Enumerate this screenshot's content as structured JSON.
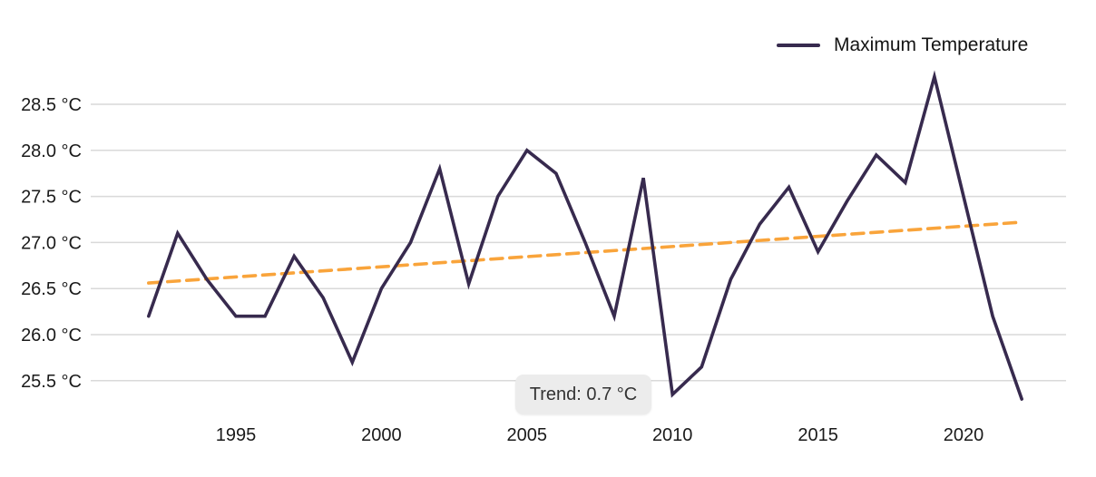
{
  "chart_data": {
    "type": "line",
    "title": "",
    "xlabel": "",
    "ylabel": "",
    "x": [
      1992,
      1993,
      1994,
      1995,
      1996,
      1997,
      1998,
      1999,
      2000,
      2001,
      2002,
      2003,
      2004,
      2005,
      2006,
      2007,
      2008,
      2009,
      2010,
      2011,
      2012,
      2013,
      2014,
      2015,
      2016,
      2017,
      2018,
      2019,
      2020,
      2021,
      2022
    ],
    "series": [
      {
        "name": "Maximum Temperature",
        "color": "#372a4e",
        "style": "solid",
        "values": [
          26.2,
          27.1,
          26.6,
          26.2,
          26.2,
          26.85,
          26.4,
          25.7,
          26.5,
          27.0,
          27.8,
          26.55,
          27.5,
          28.0,
          27.75,
          27.0,
          26.2,
          27.7,
          25.35,
          25.65,
          26.6,
          27.2,
          27.6,
          26.9,
          27.45,
          27.95,
          27.65,
          28.8,
          27.5,
          26.2,
          25.3
        ]
      }
    ],
    "trendline": {
      "label": "Trend: 0.7 °C",
      "color": "#f9a43b",
      "style": "dashed",
      "start_year": 1992,
      "end_year": 2022,
      "start_value": 26.56,
      "end_value": 27.22
    },
    "y_axis": {
      "ticks": [
        28.5,
        28.0,
        27.5,
        27.0,
        26.5,
        26.0,
        25.5
      ],
      "tick_labels": [
        "28.5 °C",
        "28.0 °C",
        "27.5 °C",
        "27.0 °C",
        "26.5 °C",
        "26.0 °C",
        "25.5 °C"
      ],
      "ylim": [
        25.2,
        28.9
      ]
    },
    "x_axis": {
      "ticks": [
        1995,
        2000,
        2005,
        2010,
        2015,
        2020
      ],
      "tick_labels": [
        "1995",
        "2000",
        "2005",
        "2010",
        "2015",
        "2020"
      ],
      "xlim": [
        1992,
        2022
      ]
    },
    "grid": true,
    "grid_color": "#d9d9d9",
    "legend_position": "top-right"
  },
  "legend": {
    "label": "Maximum Temperature"
  }
}
